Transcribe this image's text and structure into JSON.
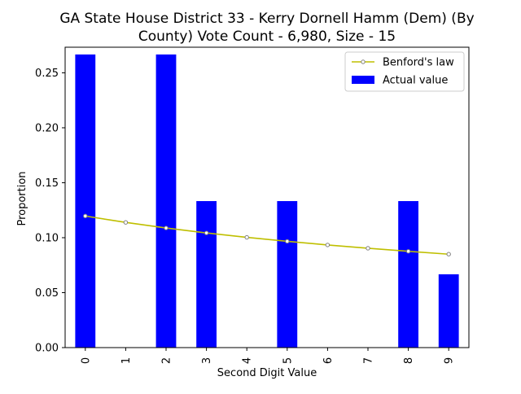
{
  "chart_data": {
    "type": "bar",
    "title_lines": [
      "GA State House District 33 - Kerry Dornell Hamm (Dem) (By",
      "County) Vote Count - 6,980, Size - 15"
    ],
    "xlabel": "Second Digit Value",
    "ylabel": "Proportion",
    "categories": [
      "0",
      "1",
      "2",
      "3",
      "4",
      "5",
      "6",
      "7",
      "8",
      "9"
    ],
    "ylim": [
      0,
      0.2733
    ],
    "yticks": [
      0.0,
      0.05,
      0.1,
      0.15,
      0.2,
      0.25
    ],
    "ytick_labels": [
      "0.00",
      "0.05",
      "0.10",
      "0.15",
      "0.20",
      "0.25"
    ],
    "grid": false,
    "legend_position": "top-right",
    "series": [
      {
        "name": "Benford's law",
        "kind": "line",
        "color": "#bfbf00",
        "marker_edge": "#808080",
        "values": [
          0.1197,
          0.1139,
          0.1088,
          0.1043,
          0.1003,
          0.0967,
          0.0934,
          0.0904,
          0.0876,
          0.085
        ]
      },
      {
        "name": "Actual value",
        "kind": "bar",
        "color": "#0000ff",
        "values": [
          0.2667,
          0.0,
          0.2667,
          0.1333,
          0.0,
          0.1333,
          0.0,
          0.0,
          0.1333,
          0.0667
        ]
      }
    ]
  }
}
